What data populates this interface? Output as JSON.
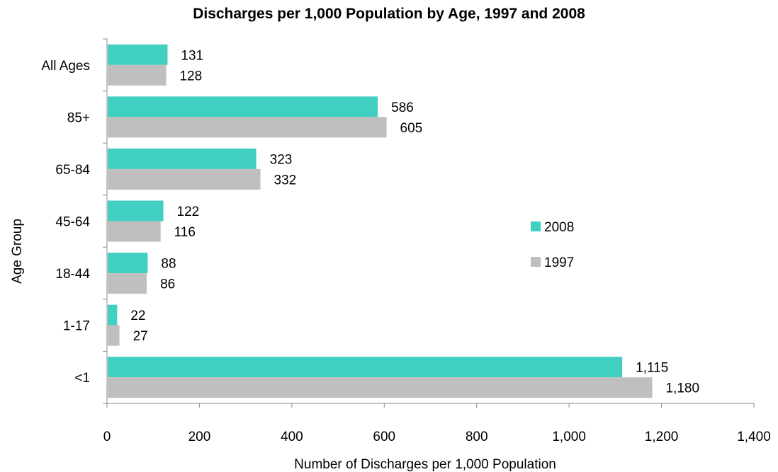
{
  "chart_data": {
    "type": "bar",
    "orientation": "horizontal",
    "title": "Discharges per 1,000 Population by Age, 1997 and 2008",
    "xlabel": "Number of Discharges per 1,000 Population",
    "ylabel": "Age Group",
    "categories": [
      "All Ages",
      "85+",
      "65-84",
      "45-64",
      "18-44",
      "1-17",
      "<1"
    ],
    "series": [
      {
        "name": "2008",
        "color": "#40CFC0",
        "values": [
          131,
          586,
          323,
          122,
          88,
          22,
          1115
        ],
        "labels": [
          "131",
          "586",
          "323",
          "122",
          "88",
          "22",
          "1,115"
        ]
      },
      {
        "name": "1997",
        "color": "#BFBFBF",
        "values": [
          128,
          605,
          332,
          116,
          86,
          27,
          1180
        ],
        "labels": [
          "128",
          "605",
          "332",
          "116",
          "86",
          "27",
          "1,180"
        ]
      }
    ],
    "xlim": [
      0,
      1400
    ],
    "xticks": [
      0,
      200,
      400,
      600,
      800,
      1000,
      1200,
      1400
    ],
    "xtick_labels": [
      "0",
      "200",
      "400",
      "600",
      "800",
      "1,000",
      "1,200",
      "1,400"
    ],
    "grid": false,
    "legend_position": "right"
  }
}
